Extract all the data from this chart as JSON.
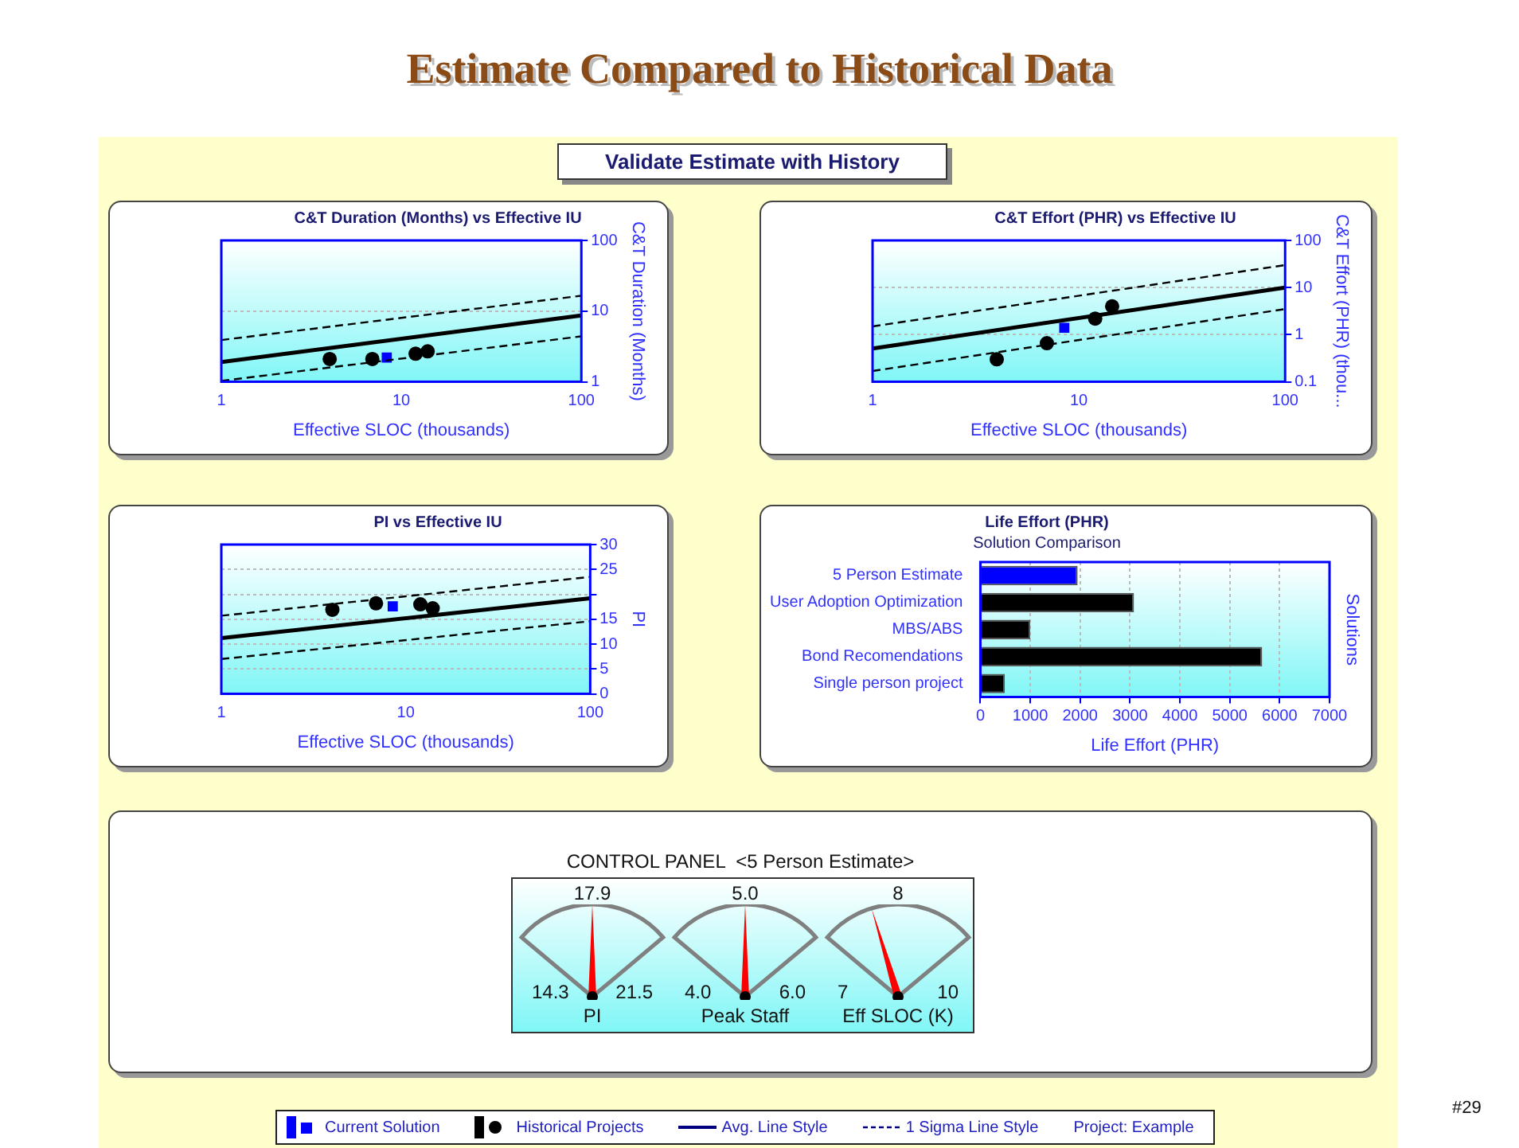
{
  "chart_data": [
    {
      "type": "other",
      "title": "Estimate Compared to Historical Data",
      "subtitle": "Validate Estimate with History"
    },
    {
      "type": "scatter",
      "title": "C&T Duration (Months) vs Effective IU",
      "xlabel": "Effective SLOC (thousands)",
      "ylabel": "C&T Duration (Months)",
      "log": "xy",
      "grid": "y",
      "xlim": [
        1,
        100
      ],
      "xticks": [
        1,
        10,
        100
      ],
      "ylim": [
        1,
        100
      ],
      "yticks": [
        1,
        10,
        100
      ],
      "series": [
        {
          "type": "line",
          "color": "#000000",
          "line_style": "solid",
          "x": [
            1,
            100
          ],
          "values": [
            1.9,
            8.7
          ]
        },
        {
          "type": "line",
          "color": "#000000",
          "line_style": "dashed",
          "x": [
            1,
            100
          ],
          "values": [
            3.9,
            16.5
          ]
        },
        {
          "type": "line",
          "color": "#000000",
          "line_style": "dashed",
          "x": [
            1,
            100
          ],
          "values": [
            1.03,
            4.4
          ]
        },
        {
          "type": "scatter",
          "color": "#000000",
          "marker": "circle",
          "x": [
            4.0,
            6.9,
            12,
            14
          ],
          "values": [
            2.1,
            2.1,
            2.5,
            2.7
          ]
        },
        {
          "type": "scatter",
          "color": "#0000ff",
          "marker": "square",
          "x": [
            8.3
          ],
          "values": [
            2.2
          ]
        }
      ]
    },
    {
      "type": "scatter",
      "title": "C&T Effort (PHR) vs Effective IU",
      "xlabel": "Effective SLOC (thousands)",
      "ylabel": "C&T Effort (PHR) (thou...",
      "log": "xy",
      "grid": "y",
      "xlim": [
        1,
        100
      ],
      "xticks": [
        1,
        10,
        100
      ],
      "ylim": [
        0.1,
        100
      ],
      "yticks": [
        0.1,
        1,
        10,
        100
      ],
      "series": [
        {
          "type": "line",
          "color": "#000000",
          "line_style": "solid",
          "x": [
            1,
            100
          ],
          "values": [
            0.51,
            10
          ]
        },
        {
          "type": "line",
          "color": "#000000",
          "line_style": "dashed",
          "x": [
            1,
            100
          ],
          "values": [
            1.5,
            30
          ]
        },
        {
          "type": "line",
          "color": "#000000",
          "line_style": "dashed",
          "x": [
            1,
            100
          ],
          "values": [
            0.17,
            3.5
          ]
        },
        {
          "type": "scatter",
          "color": "#000000",
          "marker": "circle",
          "x": [
            4.0,
            7.0,
            12,
            14.5
          ],
          "values": [
            0.3,
            0.66,
            2.2,
            4.0
          ]
        },
        {
          "type": "scatter",
          "color": "#0000ff",
          "marker": "square",
          "x": [
            8.5
          ],
          "values": [
            1.4
          ]
        }
      ]
    },
    {
      "type": "scatter",
      "title": "PI vs Effective IU",
      "xlabel": "Effective SLOC (thousands)",
      "ylabel": "PI",
      "log": "x",
      "grid": "y",
      "xlim": [
        1,
        100
      ],
      "xticks": [
        1,
        10,
        100
      ],
      "ylim": [
        0,
        30
      ],
      "yticks": [
        0,
        5,
        10,
        15,
        {
          "value": 20,
          "label": null
        },
        25,
        30
      ],
      "series": [
        {
          "type": "line",
          "color": "#000000",
          "line_style": "solid",
          "x": [
            1,
            100
          ],
          "values": [
            11.2,
            19.2
          ]
        },
        {
          "type": "line",
          "color": "#000000",
          "line_style": "dashed",
          "x": [
            1,
            100
          ],
          "values": [
            15.7,
            23.5
          ]
        },
        {
          "type": "line",
          "color": "#000000",
          "line_style": "dashed",
          "x": [
            1,
            100
          ],
          "values": [
            7.0,
            14.6
          ]
        },
        {
          "type": "scatter",
          "color": "#000000",
          "marker": "circle",
          "x": [
            4.0,
            6.9,
            12,
            14
          ],
          "values": [
            16.9,
            18.2,
            18.0,
            17.2
          ]
        },
        {
          "type": "scatter",
          "color": "#0000ff",
          "marker": "square",
          "x": [
            8.5
          ],
          "values": [
            17.6
          ]
        }
      ]
    },
    {
      "type": "bar",
      "orientation": "horizontal",
      "title": "Life Effort (PHR)",
      "subtitle": "Solution Comparison",
      "xlabel": "Life Effort (PHR)",
      "ylabel": "Solutions",
      "grid": "x",
      "categories": [
        "5 Person Estimate",
        "User Adoption Optimization",
        "MBS/ABS",
        "Bond Recomendations",
        "Single person project"
      ],
      "values": [
        1950,
        3080,
        1000,
        5650,
        490
      ],
      "colors": [
        "#0000ff",
        "#000000",
        "#000000",
        "#000000",
        "#000000"
      ],
      "xlim": [
        0,
        7000
      ],
      "xticks": [
        0,
        1000,
        2000,
        3000,
        4000,
        5000,
        6000,
        7000
      ]
    },
    {
      "type": "other",
      "title": "CONTROL PANEL  <5 Person Estimate>",
      "annotations": [
        "17.9",
        "14.3",
        "21.5",
        "PI",
        "5.0",
        "4.0",
        "6.0",
        "Peak Staff",
        "8",
        "7",
        "10",
        "Eff SLOC (K)"
      ]
    },
    {
      "type": "other",
      "annotations": [
        "Current Solution",
        "Historical Projects",
        "Avg. Line Style",
        "1 Sigma Line Style",
        "Project: Example",
        "#29"
      ]
    }
  ]
}
